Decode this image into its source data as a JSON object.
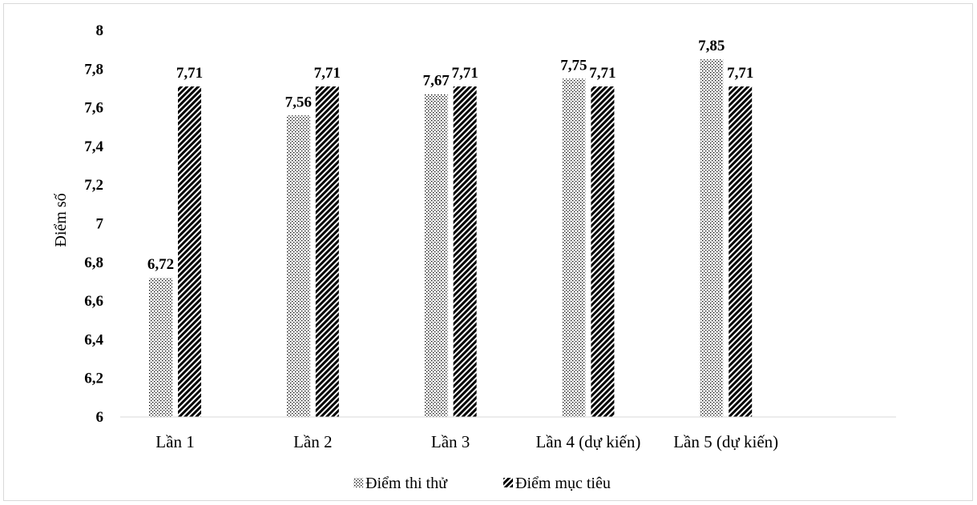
{
  "chart_data": {
    "type": "bar",
    "ylabel": "Điểm số",
    "xlabel": "",
    "title": "",
    "ylim": [
      6,
      8
    ],
    "yticks": [
      6,
      6.2,
      6.4,
      6.6,
      6.8,
      7,
      7.2,
      7.4,
      7.6,
      7.8,
      8
    ],
    "ytick_labels": [
      "6",
      "6,2",
      "6,4",
      "6,6",
      "6,8",
      "7",
      "7,2",
      "7,4",
      "7,6",
      "7,8",
      "8"
    ],
    "categories": [
      "Lần 1",
      "Lần 2",
      "Lần 3",
      "Lần 4 (dự kiến)",
      "Lần 5 (dự kiến)"
    ],
    "series": [
      {
        "name": "Điểm thi thử",
        "pattern": "dots",
        "values": [
          6.72,
          7.56,
          7.67,
          7.75,
          7.85
        ],
        "labels": [
          "6,72",
          "7,56",
          "7,67",
          "7,75",
          "7,85"
        ]
      },
      {
        "name": "Điểm mục tiêu",
        "pattern": "diagonal",
        "values": [
          7.71,
          7.71,
          7.71,
          7.71,
          7.71
        ],
        "labels": [
          "7,71",
          "7,71",
          "7,71",
          "7,71",
          "7,71"
        ]
      }
    ],
    "grid": false,
    "legend": "bottom"
  }
}
